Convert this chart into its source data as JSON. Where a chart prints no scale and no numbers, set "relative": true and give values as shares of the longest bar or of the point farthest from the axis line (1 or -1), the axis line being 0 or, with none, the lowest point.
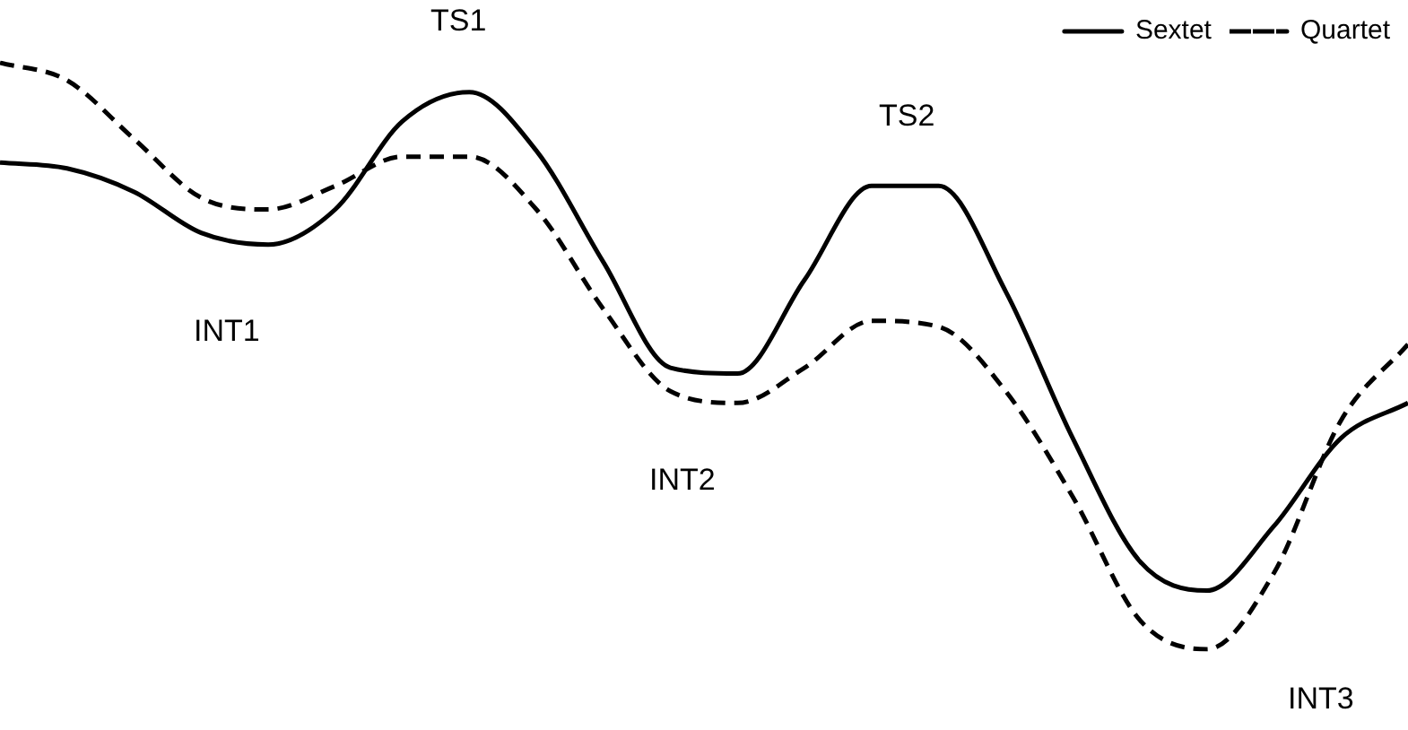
{
  "chart_data": {
    "type": "line",
    "relative": true,
    "legend": "top right",
    "marker": "none",
    "categories": [
      null,
      null,
      null,
      null,
      null,
      null,
      null,
      null,
      null,
      null,
      null,
      null,
      null,
      null,
      null,
      null,
      null,
      null,
      null,
      null,
      null,
      null
    ],
    "series": [
      {
        "name": "Sextet",
        "color": "#000000",
        "line_style": "solid",
        "values": [
          0.83,
          0.82,
          0.78,
          0.71,
          0.69,
          0.75,
          0.9,
          0.95,
          0.85,
          0.66,
          0.48,
          0.47,
          0.63,
          0.79,
          0.79,
          0.61,
          0.36,
          0.15,
          0.1,
          0.21,
          0.36,
          0.42
        ]
      },
      {
        "name": "Quartet",
        "color": "#000000",
        "line_style": "dashed",
        "values": [
          1,
          0.97,
          0.87,
          0.77,
          0.75,
          0.79,
          0.84,
          0.84,
          0.75,
          0.58,
          0.44,
          0.42,
          0.48,
          0.56,
          0.55,
          0.44,
          0.26,
          0.05,
          0,
          0.13,
          0.39,
          0.52
        ]
      }
    ],
    "annotations": [
      "TS1",
      "TS2",
      "INT1",
      "INT2",
      "INT3"
    ]
  }
}
